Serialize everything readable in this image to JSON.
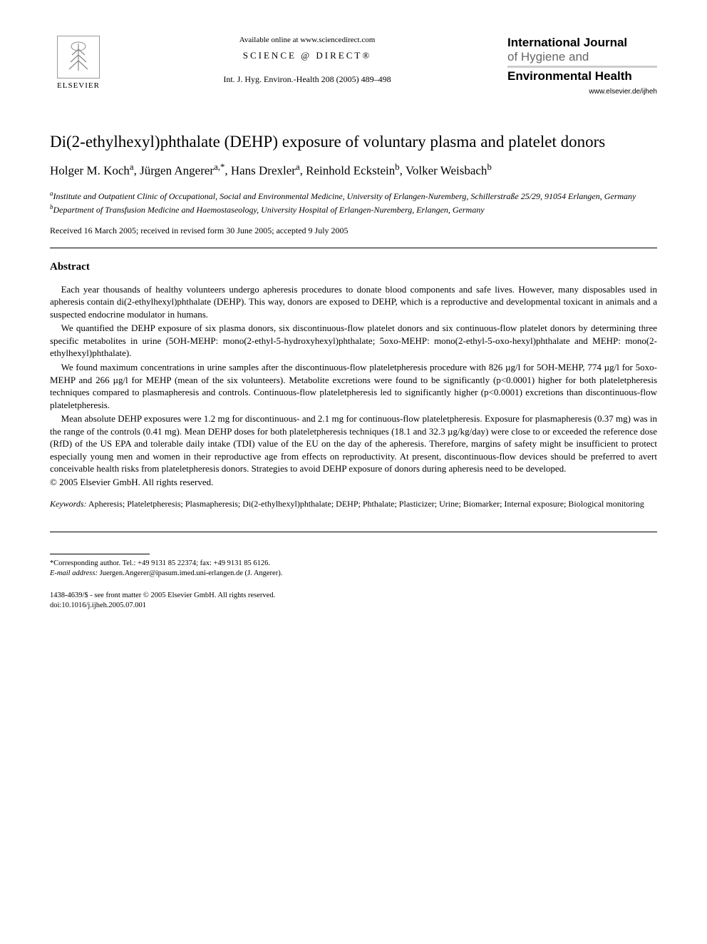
{
  "header": {
    "available_online": "Available online at www.sciencedirect.com",
    "sciencedirect": "SCIENCE @ DIRECT®",
    "citation": "Int. J. Hyg. Environ.-Health 208 (2005) 489–498",
    "publisher_name": "ELSEVIER",
    "journal_line1": "International Journal",
    "journal_line2": "of Hygiene and",
    "journal_line3": "Environmental Health",
    "journal_url": "www.elsevier.de/ijheh"
  },
  "title": "Di(2-ethylhexyl)phthalate (DEHP) exposure of voluntary plasma and platelet donors",
  "authors_html": "Holger M. Koch<sup>a</sup>, Jürgen Angerer<sup>a,*</sup>, Hans Drexler<sup>a</sup>, Reinhold Eckstein<sup>b</sup>, Volker Weisbach<sup>b</sup>",
  "affiliations": {
    "a": "Institute and Outpatient Clinic of Occupational, Social and Environmental Medicine, University of Erlangen-Nuremberg, Schillerstraße 25/29, 91054 Erlangen, Germany",
    "b": "Department of Transfusion Medicine and Haemostaseology, University Hospital of Erlangen-Nuremberg, Erlangen, Germany"
  },
  "dates": "Received 16 March 2005; received in revised form 30 June 2005; accepted 9 July 2005",
  "abstract_heading": "Abstract",
  "abstract": {
    "p1": "Each year thousands of healthy volunteers undergo apheresis procedures to donate blood components and safe lives. However, many disposables used in apheresis contain di(2-ethylhexyl)phthalate (DEHP). This way, donors are exposed to DEHP, which is a reproductive and developmental toxicant in animals and a suspected endocrine modulator in humans.",
    "p2": "We quantified the DEHP exposure of six plasma donors, six discontinuous-flow platelet donors and six continuous-flow platelet donors by determining three specific metabolites in urine (5OH-MEHP: mono(2-ethyl-5-hydroxyhexyl)phthalate; 5oxo-MEHP: mono(2-ethyl-5-oxo-hexyl)phthalate and MEHP: mono(2-ethylhexyl)phthalate).",
    "p3": "We found maximum concentrations in urine samples after the discontinuous-flow plateletpheresis procedure with 826 µg/l for 5OH-MEHP, 774 µg/l for 5oxo-MEHP and 266 µg/l for MEHP (mean of the six volunteers). Metabolite excretions were found to be significantly (p<0.0001) higher for both plateletpheresis techniques compared to plasmapheresis and controls. Continuous-flow plateletpheresis led to significantly higher (p<0.0001) excretions than discontinuous-flow plateletpheresis.",
    "p4": "Mean absolute DEHP exposures were 1.2 mg for discontinuous- and 2.1 mg for continuous-flow plateletpheresis. Exposure for plasmapheresis (0.37 mg) was in the range of the controls (0.41 mg). Mean DEHP doses for both plateletpheresis techniques (18.1 and 32.3 µg/kg/day) were close to or exceeded the reference dose (RfD) of the US EPA and tolerable daily intake (TDI) value of the EU on the day of the apheresis. Therefore, margins of safety might be insufficient to protect especially young men and women in their reproductive age from effects on reproductivity. At present, discontinuous-flow devices should be preferred to avert conceivable health risks from plateletpheresis donors. Strategies to avoid DEHP exposure of donors during apheresis need to be developed."
  },
  "copyright": "© 2005 Elsevier GmbH. All rights reserved.",
  "keywords_label": "Keywords:",
  "keywords": "Apheresis; Plateletpheresis; Plasmapheresis; Di(2-ethylhexyl)phthalate; DEHP; Phthalate; Plasticizer; Urine; Biomarker; Internal exposure; Biological monitoring",
  "footnote": {
    "corresponding": "*Corresponding author. Tel.: +49 9131 85 22374; fax: +49 9131 85 6126.",
    "email_label": "E-mail address:",
    "email": "Juergen.Angerer@ipasum.imed.uni-erlangen.de (J. Angerer)."
  },
  "bottom": {
    "issn": "1438-4639/$ - see front matter © 2005 Elsevier GmbH. All rights reserved.",
    "doi": "doi:10.1016/j.ijheh.2005.07.001"
  }
}
